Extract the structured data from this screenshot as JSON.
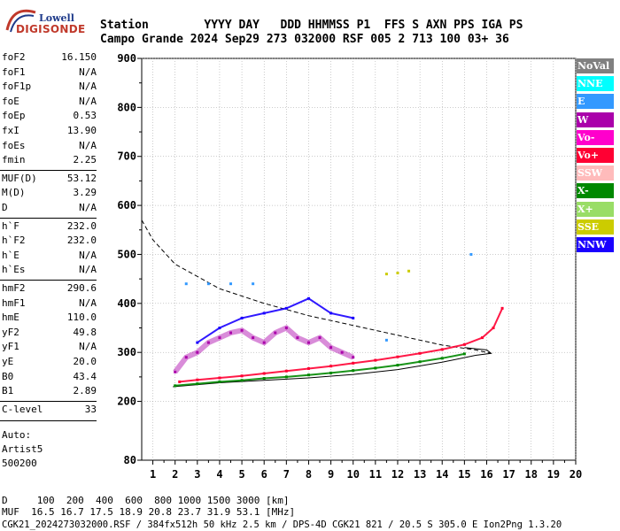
{
  "logo": {
    "line1": "Lowell",
    "line2": "DIGISONDE"
  },
  "header": {
    "row1": "Station        YYYY DAY   DDD HHMMSS P1  FFS S AXN PPS IGA PS",
    "row2": "Campo Grande 2024 Sep29 273 032000 RSF 005 2 713 100 03+ 36"
  },
  "params": [
    {
      "label": "foF2",
      "value": "16.150"
    },
    {
      "label": "foF1",
      "value": "N/A"
    },
    {
      "label": "foF1p",
      "value": "N/A"
    },
    {
      "label": "foE",
      "value": "N/A"
    },
    {
      "label": "foEp",
      "value": "0.53"
    },
    {
      "label": "fxI",
      "value": "13.90"
    },
    {
      "label": "foEs",
      "value": "N/A"
    },
    {
      "label": "fmin",
      "value": "2.25"
    },
    {
      "label": "MUF(D)",
      "value": "53.12"
    },
    {
      "label": "M(D)",
      "value": "3.29"
    },
    {
      "label": "D",
      "value": "N/A"
    },
    {
      "label": "h`F",
      "value": "232.0"
    },
    {
      "label": "h`F2",
      "value": "232.0"
    },
    {
      "label": "h`E",
      "value": "N/A"
    },
    {
      "label": "h`Es",
      "value": "N/A"
    },
    {
      "label": "hmF2",
      "value": "290.6"
    },
    {
      "label": "hmF1",
      "value": "N/A"
    },
    {
      "label": "hmE",
      "value": "110.0"
    },
    {
      "label": "yF2",
      "value": "49.8"
    },
    {
      "label": "yF1",
      "value": "N/A"
    },
    {
      "label": "yE",
      "value": "20.0"
    },
    {
      "label": "B0",
      "value": "43.4"
    },
    {
      "label": "B1",
      "value": "2.89"
    },
    {
      "label": "C-level",
      "value": "33"
    }
  ],
  "auto": {
    "line1": "Auto:",
    "line2": "Artist5",
    "line3": "500200"
  },
  "legend": [
    {
      "label": "NoVal",
      "color": "#808080",
      "text_color": "#ffffff"
    },
    {
      "label": "NNE",
      "color": "#00ffff",
      "text_color": "#ffffff"
    },
    {
      "label": "E",
      "color": "#3399ff",
      "text_color": "#ffffff"
    },
    {
      "label": "W",
      "color": "#aa00aa",
      "text_color": "#ffffff"
    },
    {
      "label": "Vo-",
      "color": "#ff00cc",
      "text_color": "#ffffff"
    },
    {
      "label": "Vo+",
      "color": "#ff0033",
      "text_color": "#ffffff"
    },
    {
      "label": "SSW",
      "color": "#ffbbbb",
      "text_color": "#ffffff"
    },
    {
      "label": "X-",
      "color": "#008800",
      "text_color": "#ffffff"
    },
    {
      "label": "X+",
      "color": "#99dd66",
      "text_color": "#ffffff"
    },
    {
      "label": "SSE",
      "color": "#cccc00",
      "text_color": "#ffffff"
    },
    {
      "label": "NNW",
      "color": "#1a00ff",
      "text_color": "#ffffff"
    }
  ],
  "footer": {
    "line1": "D     100  200  400  600  800 1000 1500 3000 [km]",
    "line2": "MUF  16.5 16.7 17.5 18.9 20.8 23.7 31.9 53.1 [MHz]",
    "line3": "CGK21_2024273032000.RSF / 384fx512h 50 kHz 2.5 km / DPS-4D CGK21 821 / 20.5 S 305.0 E Ion2Png 1.3.20"
  },
  "chart_data": {
    "type": "scatter",
    "title": "",
    "xlabel": "",
    "ylabel": "",
    "xlim": [
      0.5,
      20
    ],
    "ylim": [
      80,
      900
    ],
    "x_ticks": [
      1,
      2,
      3,
      4,
      5,
      6,
      7,
      8,
      9,
      10,
      11,
      12,
      13,
      14,
      15,
      16,
      17,
      18,
      19,
      20
    ],
    "y_ticks": [
      80,
      200,
      300,
      400,
      500,
      600,
      700,
      800,
      900
    ],
    "grid": true,
    "traces": [
      {
        "name": "ordinary-trace",
        "color": "#ff0033",
        "points": [
          [
            2.2,
            240
          ],
          [
            3,
            244
          ],
          [
            4,
            248
          ],
          [
            5,
            252
          ],
          [
            6,
            257
          ],
          [
            7,
            262
          ],
          [
            8,
            267
          ],
          [
            9,
            272
          ],
          [
            10,
            278
          ],
          [
            11,
            284
          ],
          [
            12,
            291
          ],
          [
            13,
            298
          ],
          [
            14,
            306
          ],
          [
            15,
            316
          ],
          [
            15.8,
            330
          ],
          [
            16.3,
            350
          ],
          [
            16.7,
            390
          ]
        ]
      },
      {
        "name": "extraordinary-trace",
        "color": "#008800",
        "points": [
          [
            2,
            232
          ],
          [
            3,
            236
          ],
          [
            4,
            240
          ],
          [
            5,
            243
          ],
          [
            6,
            247
          ],
          [
            7,
            250
          ],
          [
            8,
            254
          ],
          [
            9,
            258
          ],
          [
            10,
            263
          ],
          [
            11,
            268
          ],
          [
            12,
            274
          ],
          [
            13,
            281
          ],
          [
            14,
            288
          ],
          [
            15,
            297
          ]
        ]
      },
      {
        "name": "diffuse-spread-f",
        "color": "#aa00aa",
        "points": [
          [
            2,
            260
          ],
          [
            2.5,
            290
          ],
          [
            3,
            300
          ],
          [
            3.5,
            320
          ],
          [
            4,
            330
          ],
          [
            4.5,
            340
          ],
          [
            5,
            345
          ],
          [
            5.5,
            330
          ],
          [
            6,
            320
          ],
          [
            6.5,
            340
          ],
          [
            7,
            350
          ],
          [
            7.5,
            330
          ],
          [
            8,
            320
          ],
          [
            8.5,
            330
          ],
          [
            9,
            310
          ],
          [
            9.5,
            300
          ],
          [
            10,
            290
          ]
        ]
      },
      {
        "name": "nnw-echoes",
        "color": "#1a00ff",
        "points": [
          [
            3,
            320
          ],
          [
            4,
            350
          ],
          [
            5,
            370
          ],
          [
            6,
            380
          ],
          [
            7,
            390
          ],
          [
            8,
            410
          ],
          [
            9,
            380
          ],
          [
            10,
            370
          ]
        ]
      },
      {
        "name": "e-echoes",
        "color": "#3399ff",
        "points": [
          [
            2.5,
            440
          ],
          [
            3.5,
            440
          ],
          [
            4.5,
            440
          ],
          [
            5.5,
            440
          ],
          [
            11.5,
            325
          ],
          [
            15.3,
            500
          ]
        ]
      },
      {
        "name": "sse-echoes",
        "color": "#cccc00",
        "points": [
          [
            11.5,
            460
          ],
          [
            12,
            462
          ],
          [
            12.5,
            466
          ]
        ]
      }
    ],
    "profile_solid": [
      [
        1.9,
        230
      ],
      [
        4,
        238
      ],
      [
        6,
        243
      ],
      [
        8,
        248
      ],
      [
        10,
        255
      ],
      [
        12,
        265
      ],
      [
        14,
        280
      ],
      [
        15.5,
        294
      ],
      [
        16.2,
        298
      ],
      [
        16,
        305
      ],
      [
        15,
        310
      ]
    ],
    "profile_dashed": [
      [
        0.5,
        570
      ],
      [
        1,
        530
      ],
      [
        2,
        480
      ],
      [
        4,
        430
      ],
      [
        6,
        400
      ],
      [
        8,
        375
      ],
      [
        10,
        355
      ],
      [
        12,
        335
      ],
      [
        14,
        315
      ],
      [
        15.5,
        305
      ],
      [
        16.2,
        298
      ]
    ]
  }
}
